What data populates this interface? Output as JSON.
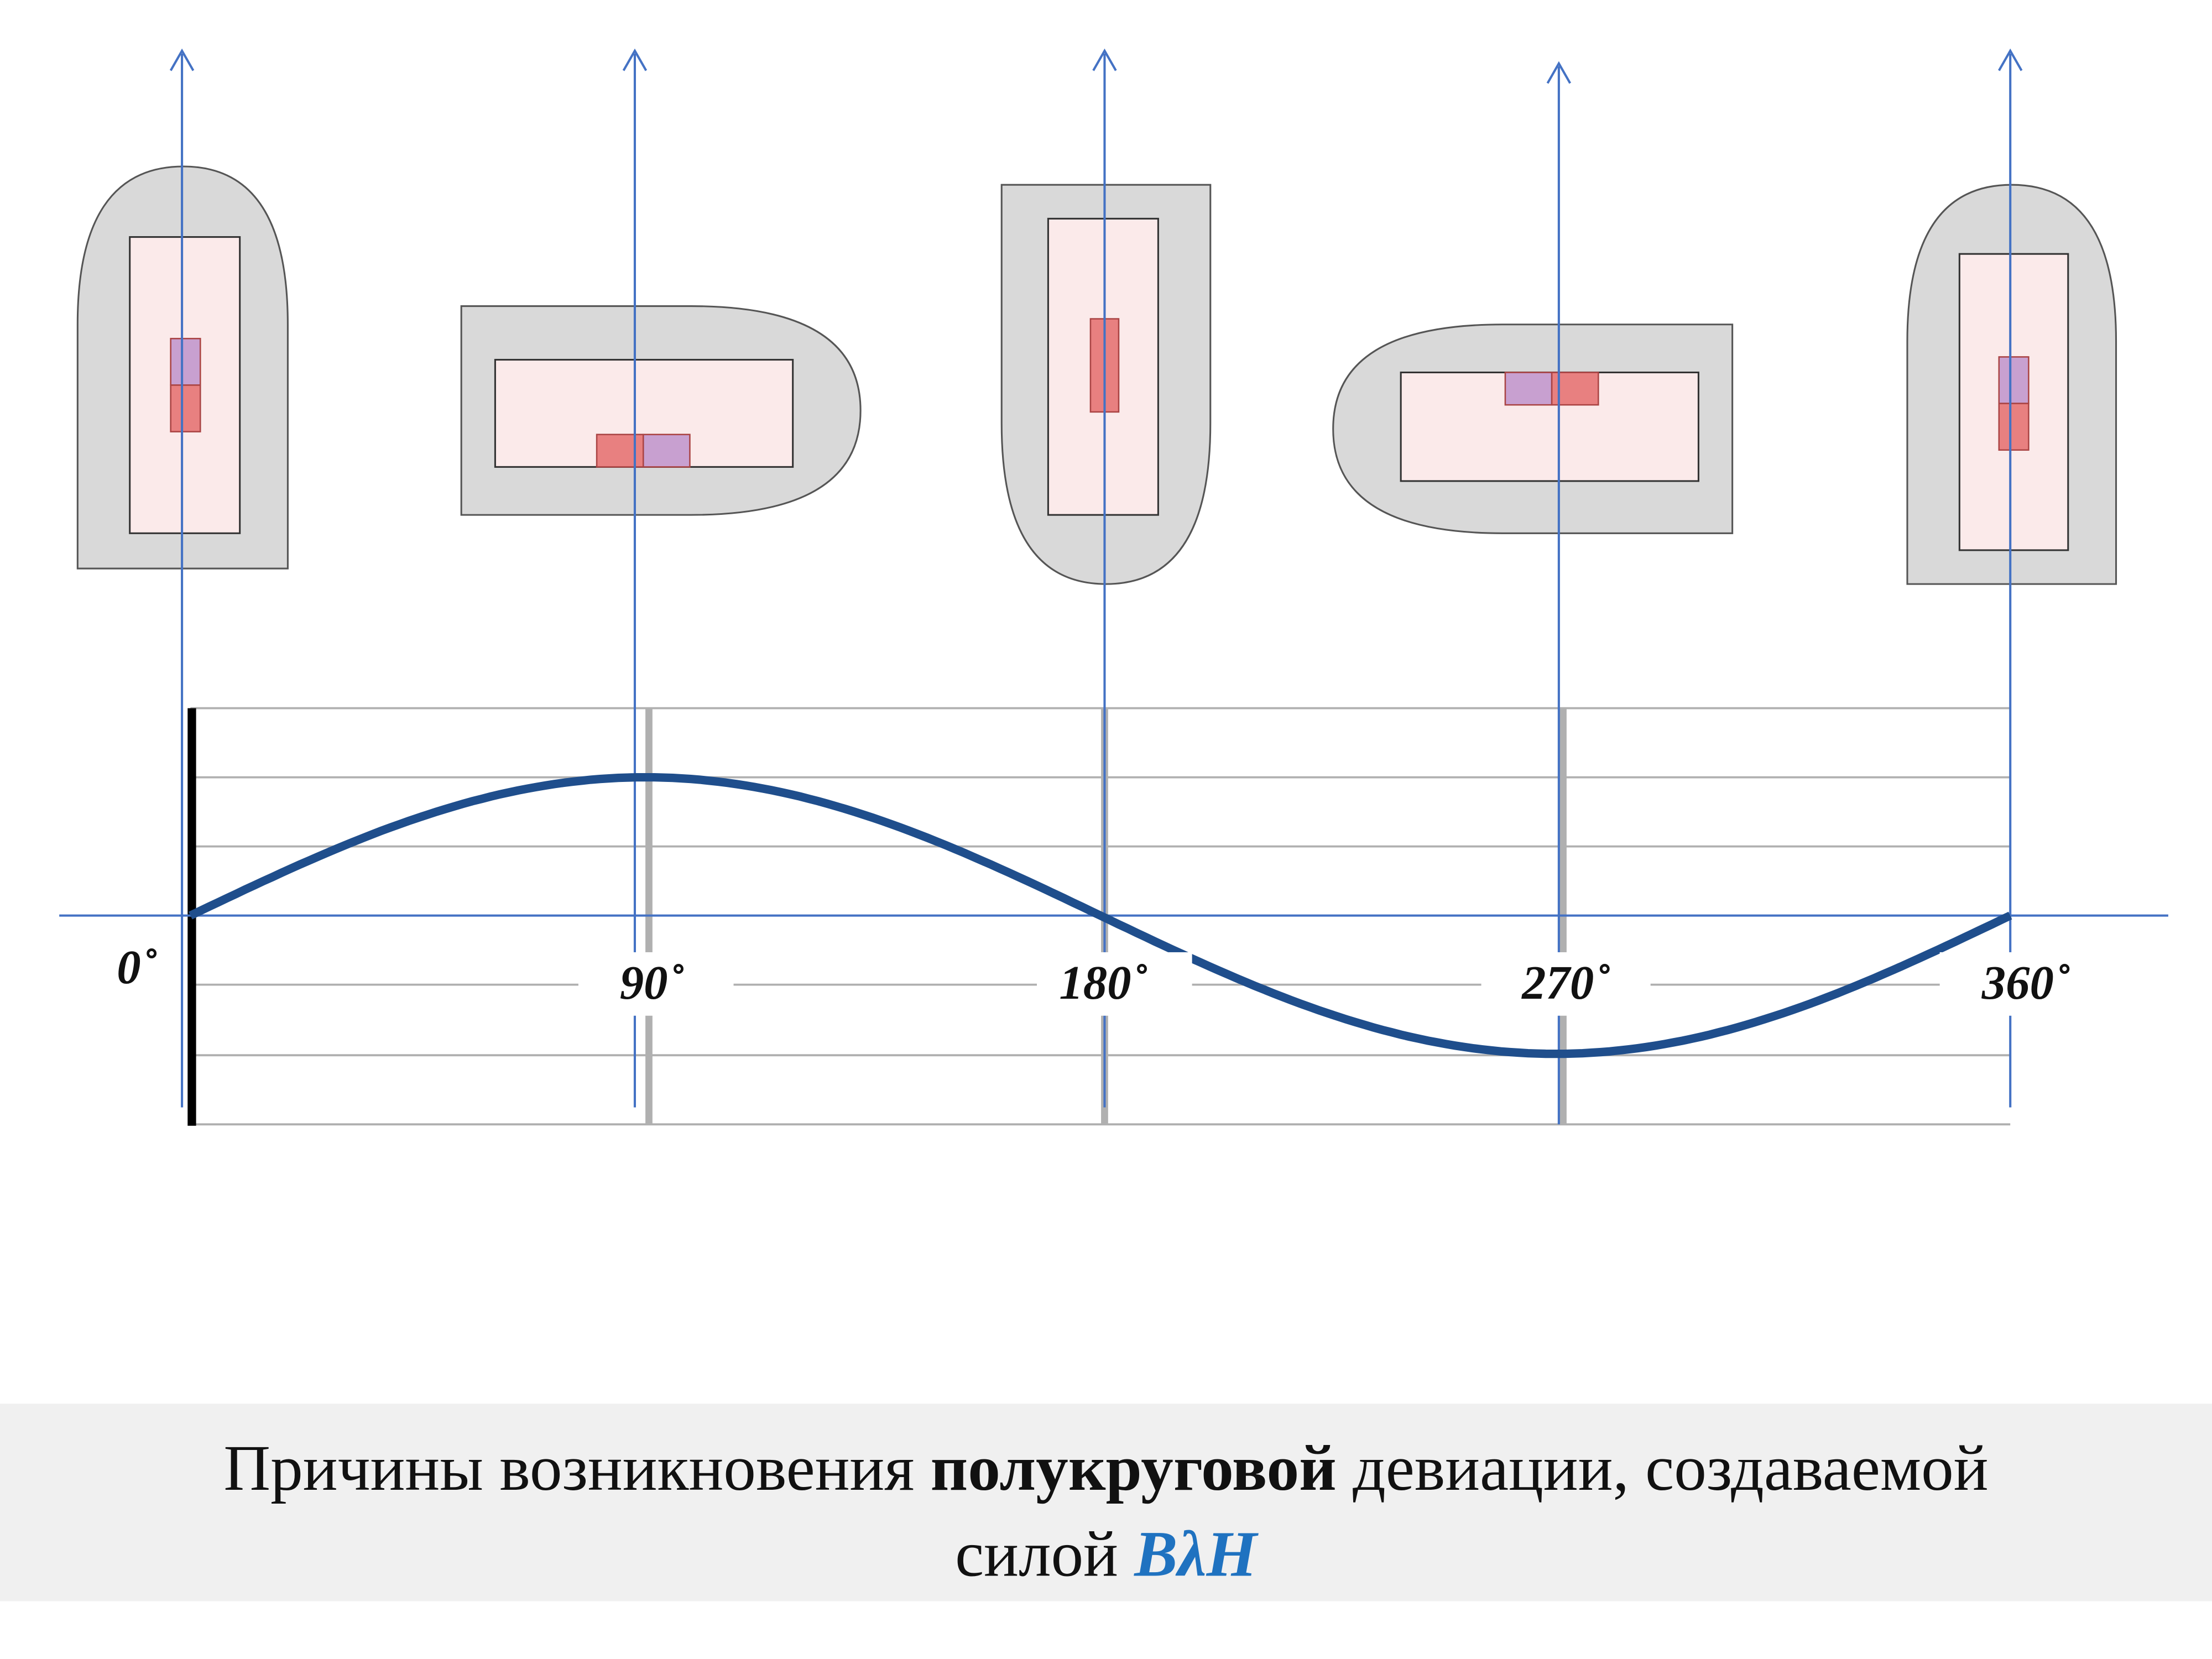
{
  "axis_labels": [
    "0˚",
    "90˚",
    "180˚",
    "270˚",
    "360˚"
  ],
  "caption": {
    "part1": "Причины возникновения",
    "bold": "полукруговой",
    "part2": "девиации, создаваемой",
    "line2": "силой",
    "formula": "BλH"
  }
}
